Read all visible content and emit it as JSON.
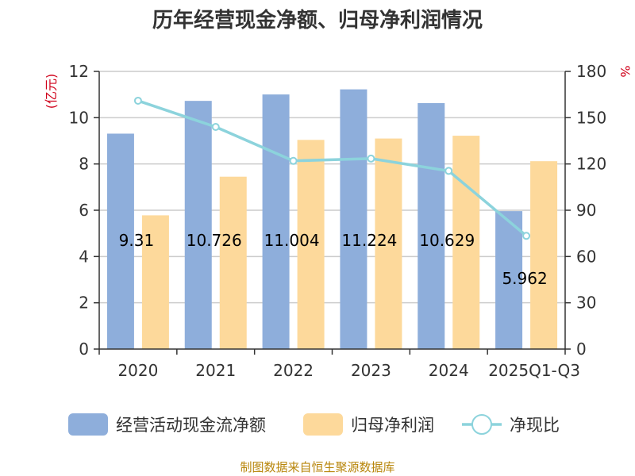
{
  "chart_data": {
    "type": "bar",
    "title": "历年经营现金净额、归母净利润情况",
    "categories": [
      "2020",
      "2021",
      "2022",
      "2023",
      "2024",
      "2025Q1-Q3"
    ],
    "y_left_unit": "(亿元)",
    "y_right_unit": "%",
    "ylim_left": [
      0,
      12
    ],
    "ylim_right": [
      0,
      180
    ],
    "yticks_left": [
      0,
      2,
      4,
      6,
      8,
      10,
      12
    ],
    "yticks_right": [
      0,
      30,
      60,
      90,
      120,
      150,
      180
    ],
    "grid": true,
    "legend_position": "bottom",
    "series": [
      {
        "name": "经营活动现金流净额",
        "type": "bar",
        "axis": "left",
        "color": "#8eaedb",
        "values": [
          9.31,
          10.726,
          11.004,
          11.224,
          10.629,
          5.962
        ],
        "labels": [
          "9.31",
          "10.726",
          "11.004",
          "11.224",
          "10.629",
          "5.962"
        ]
      },
      {
        "name": "归母净利润",
        "type": "bar",
        "axis": "left",
        "color": "#fdd99b",
        "values": [
          5.78,
          7.45,
          9.04,
          9.1,
          9.22,
          8.12
        ]
      },
      {
        "name": "净现比",
        "type": "line",
        "axis": "right",
        "color": "#8cd3dc",
        "values": [
          161,
          144,
          122,
          123.5,
          115.5,
          73.4
        ]
      }
    ]
  },
  "source": "制图数据来自恒生聚源数据库"
}
